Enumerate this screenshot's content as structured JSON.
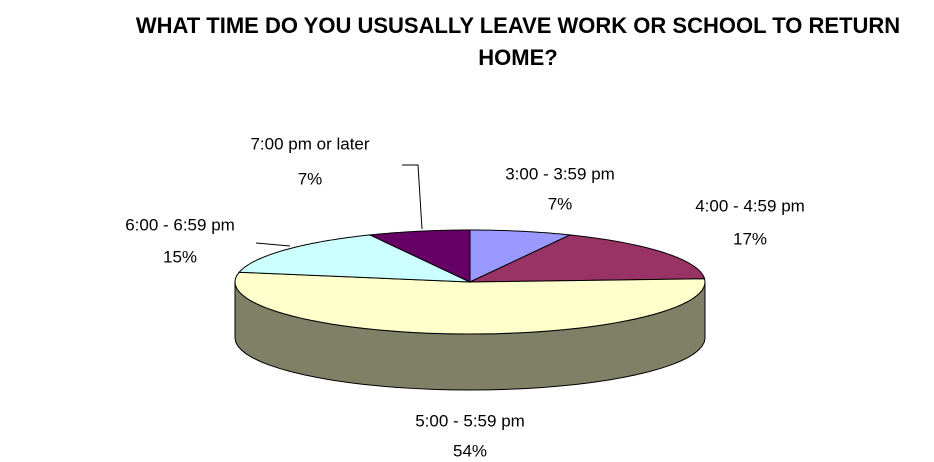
{
  "chart_data": {
    "type": "pie",
    "title": "WHAT TIME DO YOU USUSALLY LEAVE WORK OR SCHOOL TO RETURN HOME?",
    "categories": [
      "3:00 - 3:59 pm",
      "4:00 - 4:59 pm",
      "5:00 - 5:59 pm",
      "6:00 - 6:59 pm",
      "7:00 pm or later"
    ],
    "values": [
      7,
      17,
      54,
      15,
      7
    ],
    "value_labels": [
      "7%",
      "17%",
      "54%",
      "15%",
      "7%"
    ],
    "colors": [
      "#9999ff",
      "#993366",
      "#ffffcc",
      "#ccffff",
      "#660066"
    ]
  }
}
